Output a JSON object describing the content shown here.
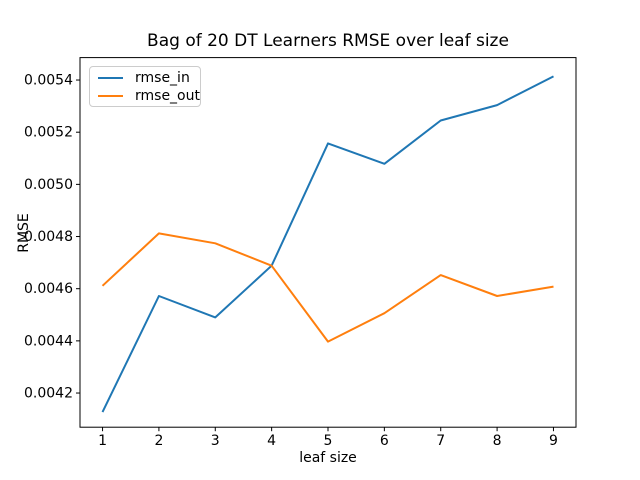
{
  "chart_data": {
    "type": "line",
    "title": "Bag of 20 DT Learners RMSE over leaf size",
    "xlabel": "leaf size",
    "ylabel": "RMSE",
    "x": [
      1,
      2,
      3,
      4,
      5,
      6,
      7,
      8,
      9
    ],
    "series": [
      {
        "name": "rmse_in",
        "color": "#1f77b4",
        "values": [
          0.004127,
          0.004572,
          0.00449,
          0.004688,
          0.005157,
          0.005079,
          0.005245,
          0.005304,
          0.005414
        ]
      },
      {
        "name": "rmse_out",
        "color": "#ff7f0e",
        "values": [
          0.004611,
          0.004812,
          0.004774,
          0.004688,
          0.004397,
          0.004506,
          0.004652,
          0.004572,
          0.004608
        ]
      }
    ],
    "xtick_labels": [
      "1",
      "2",
      "3",
      "4",
      "5",
      "6",
      "7",
      "8",
      "9"
    ],
    "xtick_values": [
      1,
      2,
      3,
      4,
      5,
      6,
      7,
      8,
      9
    ],
    "ytick_labels": [
      "0.0042",
      "0.0044",
      "0.0046",
      "0.0048",
      "0.0050",
      "0.0052",
      "0.0054"
    ],
    "ytick_values": [
      0.0042,
      0.0044,
      0.0046,
      0.0048,
      0.005,
      0.0052,
      0.0054
    ],
    "xlim": [
      0.6,
      9.4
    ],
    "ylim": [
      0.004069,
      0.005486
    ],
    "grid": false,
    "legend_position": "upper left",
    "axis_color": "#000000",
    "background_color": "#ffffff"
  }
}
